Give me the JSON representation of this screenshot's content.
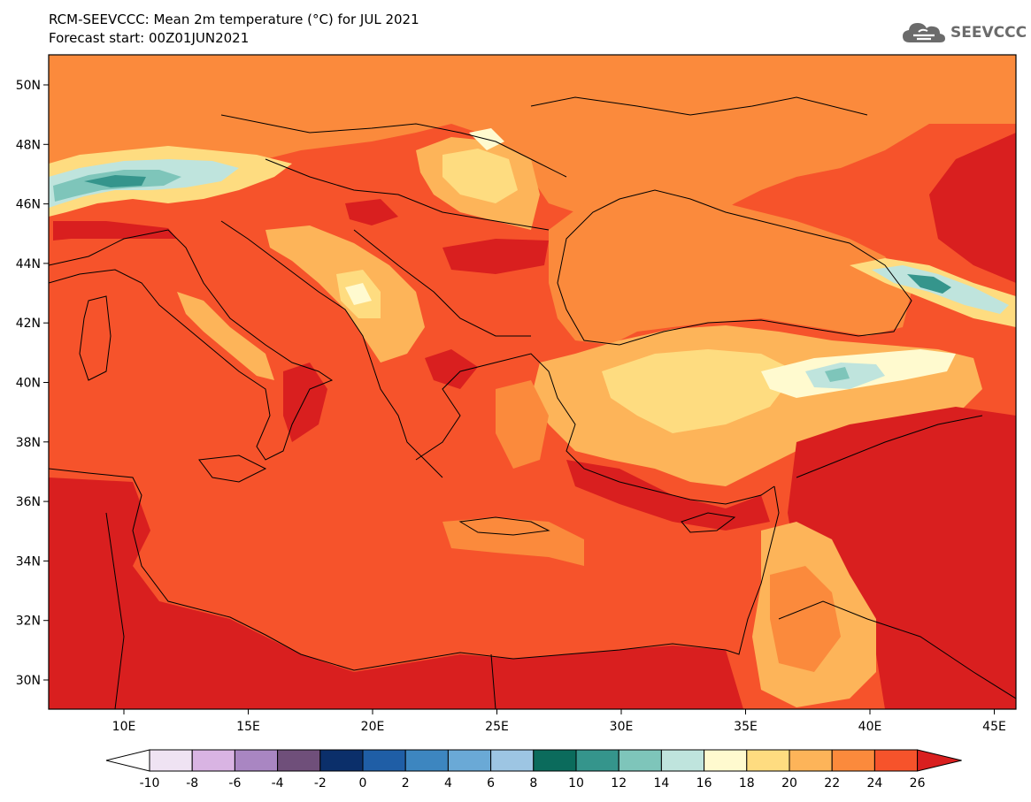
{
  "header": {
    "title": "RCM-SEEVCCC: Mean 2m temperature (°C) for JUL 2021",
    "subtitle": "Forecast start: 00Z01JUN2021",
    "logo_text": "SEEVCCC"
  },
  "map": {
    "lat_labels": [
      "50N",
      "48N",
      "46N",
      "44N",
      "42N",
      "40N",
      "38N",
      "36N",
      "34N",
      "32N",
      "30N"
    ],
    "lon_labels": [
      "10E",
      "15E",
      "20E",
      "25E",
      "30E",
      "35E",
      "40E",
      "45E"
    ]
  },
  "colorbar": {
    "labels": [
      "-10",
      "-8",
      "-6",
      "-4",
      "-2",
      "0",
      "2",
      "4",
      "6",
      "8",
      "10",
      "12",
      "14",
      "16",
      "18",
      "20",
      "22",
      "24",
      "26"
    ],
    "colors": [
      "#ffffff",
      "#efe3f3",
      "#d9b4e3",
      "#a986c2",
      "#6f4f7a",
      "#0b2f6a",
      "#1f5ea6",
      "#3d86c0",
      "#6aa9d6",
      "#9dc5e3",
      "#0b6b5c",
      "#35958c",
      "#7ec5ba",
      "#bfe4dd",
      "#fffacf",
      "#fedc80",
      "#fdb459",
      "#fb8a3c",
      "#f6532b",
      "#d91f1f"
    ]
  },
  "fields": {
    "colors": {
      "c16_18": "#fffacf",
      "c18_20": "#fedc80",
      "c20_22": "#fdb459",
      "c22_24": "#fb8a3c",
      "c24_26": "#f6532b",
      "c26": "#d91f1f",
      "c12_14": "#7ec5ba",
      "c10_12": "#35958c",
      "c14_16": "#bfe4dd"
    }
  }
}
